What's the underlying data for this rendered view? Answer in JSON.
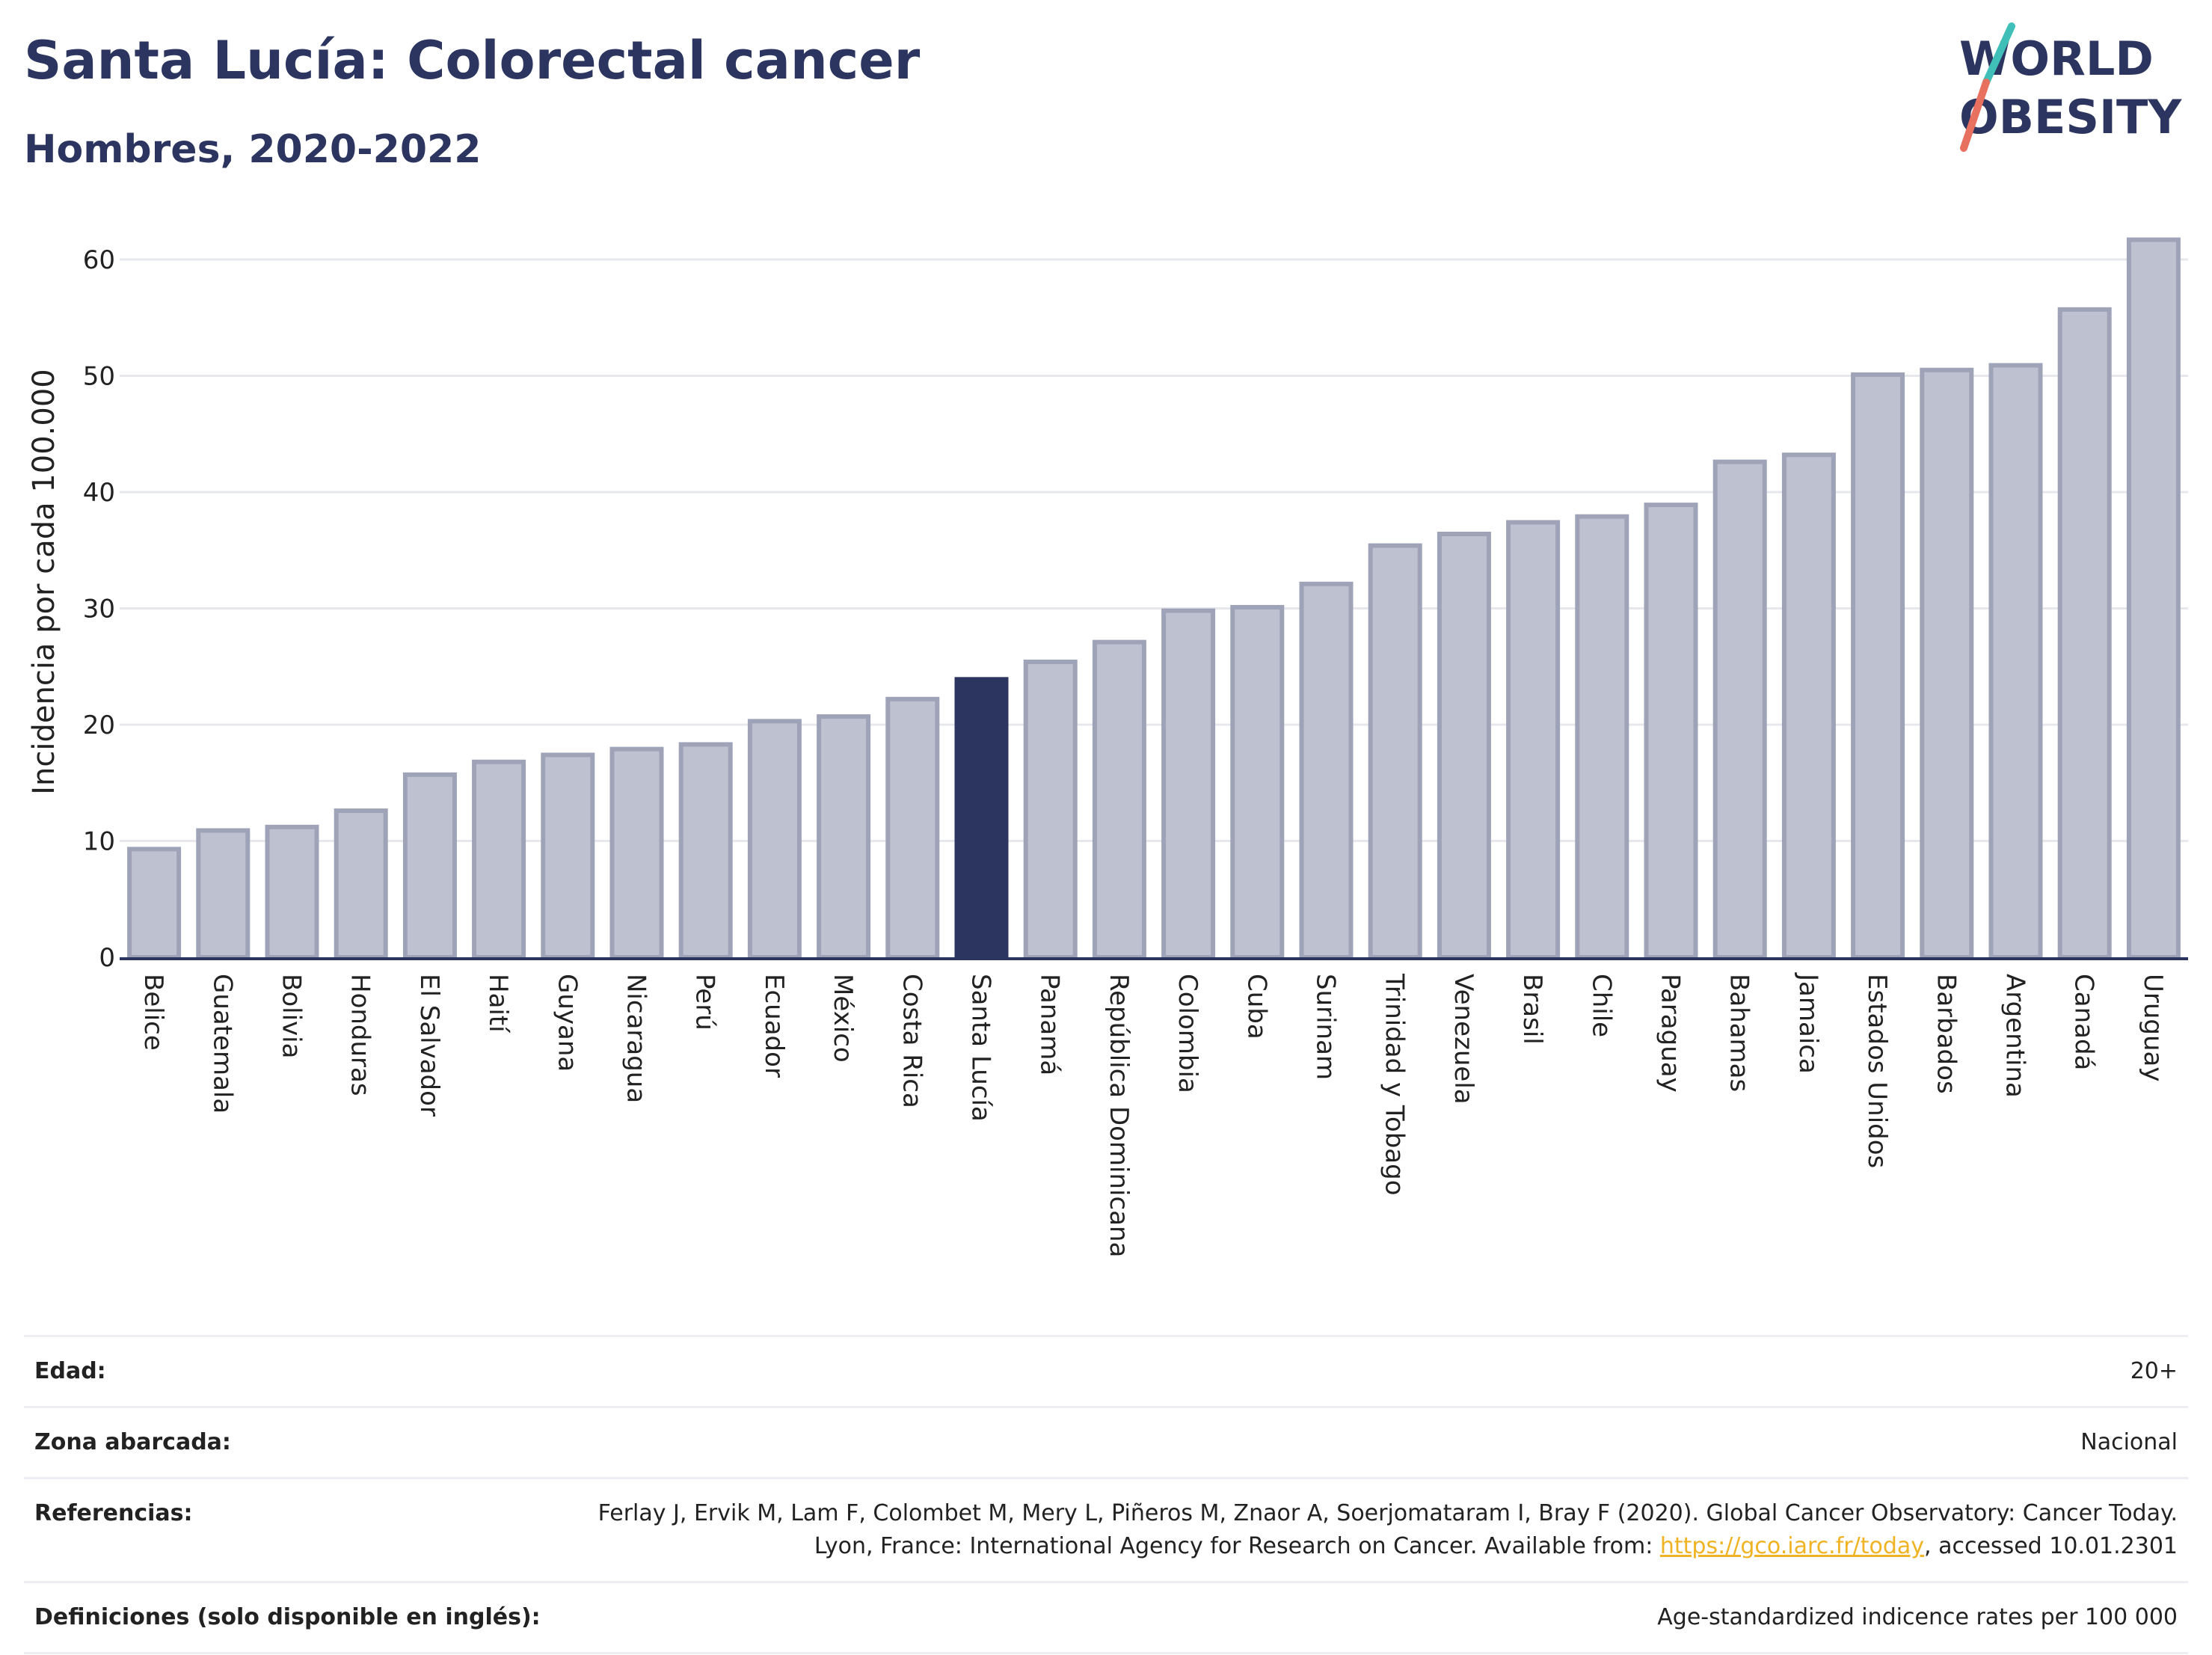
{
  "title": "Santa Lucía: Colorectal cancer",
  "subtitle": "Hombres, 2020-2022",
  "logo": {
    "line1": "WORLD",
    "line2": "OBESITY"
  },
  "colors": {
    "bar": "#bec2d0",
    "bar_edge": "#9ea3b8",
    "highlight": "#2b3560",
    "grid": "#e6e8ee",
    "text": "#2b3560"
  },
  "chart_data": {
    "type": "bar",
    "ylabel": "Incidencia por cada 100.000",
    "ylim": [
      0,
      65
    ],
    "yticks": [
      0,
      10,
      20,
      30,
      40,
      50,
      60
    ],
    "grid": true,
    "highlight": "Santa Lucía",
    "categories": [
      "Belice",
      "Guatemala",
      "Bolivia",
      "Honduras",
      "El Salvador",
      "Haití",
      "Guyana",
      "Nicaragua",
      "Perú",
      "Ecuador",
      "México",
      "Costa Rica",
      "Santa Lucía",
      "Panamá",
      "República Dominicana",
      "Colombia",
      "Cuba",
      "Surinam",
      "Trinidad y Tobago",
      "Venezuela",
      "Brasil",
      "Chile",
      "Paraguay",
      "Bahamas",
      "Jamaica",
      "Estados Unidos",
      "Barbados",
      "Argentina",
      "Canadá",
      "Uruguay"
    ],
    "values": [
      9.3,
      10.9,
      11.2,
      12.6,
      15.7,
      16.8,
      17.4,
      17.9,
      18.3,
      20.3,
      20.7,
      22.2,
      23.9,
      25.4,
      27.1,
      29.8,
      30.1,
      32.1,
      35.4,
      36.4,
      37.4,
      37.9,
      38.9,
      42.6,
      43.2,
      50.1,
      50.5,
      50.9,
      55.7,
      61.7
    ]
  },
  "meta": [
    {
      "label": "Edad:",
      "value": "20+"
    },
    {
      "label": "Zona abarcada:",
      "value": "Nacional"
    },
    {
      "label": "Referencias:",
      "value": "Ferlay J, Ervik M, Lam F, Colombet M, Mery L, Piñeros M, Znaor A, Soerjomataram I, Bray F (2020). Global Cancer Observatory: Cancer Today. Lyon, France: International Agency for Research on Cancer. Available from:",
      "link": "https://gco.iarc.fr/today",
      "suffix": ", accessed 10.01.2301"
    },
    {
      "label": "Definiciones (solo disponible en inglés):",
      "value": "Age-standardized indicence rates per 100 000"
    }
  ]
}
